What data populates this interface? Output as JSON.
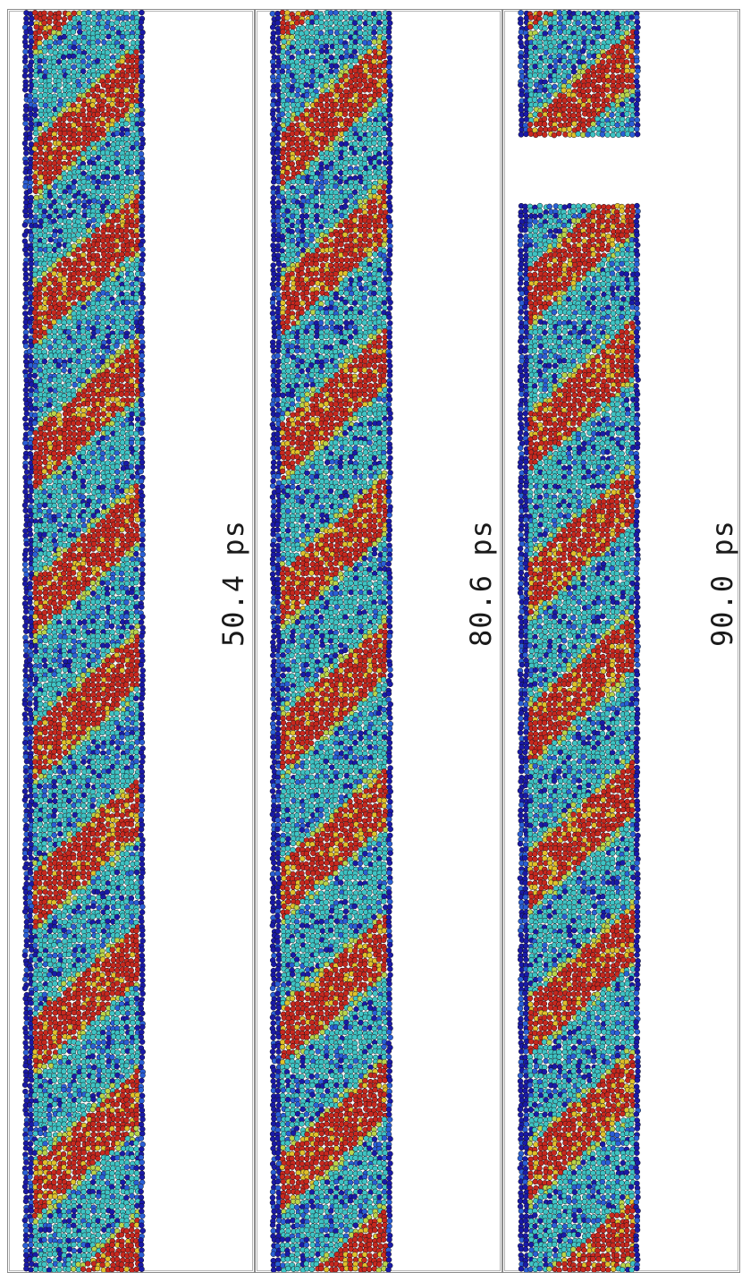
{
  "figure": {
    "panels": [
      {
        "time_label": "50.4 ps"
      },
      {
        "time_label": "80.6 ps"
      },
      {
        "time_label": "90.0 ps"
      }
    ],
    "atom_colors": [
      "#1a1aa8",
      "#2a5fd6",
      "#3ec4c4",
      "#b8d44a",
      "#e0c02a",
      "#c8281e"
    ]
  }
}
